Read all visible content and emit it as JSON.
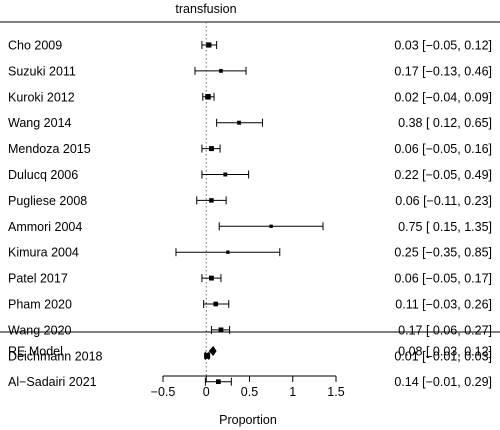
{
  "chart_data": {
    "type": "forest",
    "title": "transfusion",
    "xlabel": "Proportion",
    "xlim": [
      -0.5,
      1.5
    ],
    "xticks": [
      {
        "value": -0.5,
        "label": "−0.5"
      },
      {
        "value": 0,
        "label": "0"
      },
      {
        "value": 0.5,
        "label": "0.5"
      },
      {
        "value": 1,
        "label": "1"
      },
      {
        "value": 1.5,
        "label": "1.5"
      }
    ],
    "reference_line": 0,
    "studies": [
      {
        "name": "Cho 2009",
        "est": 0.03,
        "lo": -0.05,
        "hi": 0.12,
        "ci_text": "0.03 [−0.05, 0.12]",
        "weight": 1.4
      },
      {
        "name": "Suzuki 2011",
        "est": 0.17,
        "lo": -0.13,
        "hi": 0.46,
        "ci_text": "0.17 [−0.13, 0.46]",
        "weight": 0.6
      },
      {
        "name": "Kuroki 2012",
        "est": 0.02,
        "lo": -0.04,
        "hi": 0.09,
        "ci_text": "0.02 [−0.04, 0.09]",
        "weight": 1.7
      },
      {
        "name": "Wang 2014",
        "est": 0.38,
        "lo": 0.12,
        "hi": 0.65,
        "ci_text": "0.38 [ 0.12, 0.65]",
        "weight": 0.7
      },
      {
        "name": "Mendoza 2015",
        "est": 0.06,
        "lo": -0.05,
        "hi": 0.16,
        "ci_text": "0.06 [−0.05, 0.16]",
        "weight": 1.3
      },
      {
        "name": "Dulucq 2006",
        "est": 0.22,
        "lo": -0.05,
        "hi": 0.49,
        "ci_text": "0.22 [−0.05, 0.49]",
        "weight": 0.7
      },
      {
        "name": "Pugliese 2008",
        "est": 0.06,
        "lo": -0.11,
        "hi": 0.23,
        "ci_text": "0.06 [−0.11, 0.23]",
        "weight": 1.0
      },
      {
        "name": "Ammori 2004",
        "est": 0.75,
        "lo": 0.15,
        "hi": 1.35,
        "ci_text": "0.75 [ 0.15, 1.35]",
        "weight": 0.45
      },
      {
        "name": "Kimura 2004",
        "est": 0.25,
        "lo": -0.35,
        "hi": 0.85,
        "ci_text": "0.25 [−0.35, 0.85]",
        "weight": 0.45
      },
      {
        "name": "Patel 2017",
        "est": 0.06,
        "lo": -0.05,
        "hi": 0.17,
        "ci_text": "0.06 [−0.05, 0.17]",
        "weight": 1.2
      },
      {
        "name": "Pham 2020",
        "est": 0.11,
        "lo": -0.03,
        "hi": 0.26,
        "ci_text": "0.11 [−0.03, 0.26]",
        "weight": 1.1
      },
      {
        "name": "Wang 2020",
        "est": 0.17,
        "lo": 0.06,
        "hi": 0.27,
        "ci_text": "0.17 [ 0.06, 0.27]",
        "weight": 1.2
      },
      {
        "name": "Deichmann 2018",
        "est": 0.01,
        "lo": -0.01,
        "hi": 0.03,
        "ci_text": "0.01 [−0.01, 0.03]",
        "weight": 2.1
      },
      {
        "name": "Al−Sadairi 2021",
        "est": 0.14,
        "lo": -0.01,
        "hi": 0.29,
        "ci_text": "0.14 [−0.01, 0.29]",
        "weight": 1.1
      }
    ],
    "summary": {
      "name": "RE Model",
      "est": 0.08,
      "lo": 0.03,
      "hi": 0.12,
      "ci_text": "0.08 [ 0.03, 0.12]"
    }
  }
}
